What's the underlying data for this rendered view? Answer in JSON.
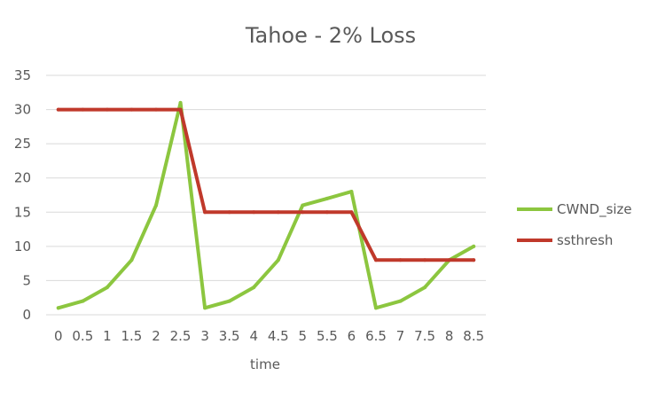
{
  "chart_data": {
    "type": "line",
    "title": "Tahoe - 2% Loss",
    "xlabel": "time",
    "ylabel": "",
    "categories": [
      "0",
      "0.5",
      "1",
      "1.5",
      "2",
      "2.5",
      "3",
      "3.5",
      "4",
      "4.5",
      "5",
      "5.5",
      "6",
      "6.5",
      "7",
      "7.5",
      "8",
      "8.5"
    ],
    "ylim": [
      0,
      35
    ],
    "yticks": [
      "0",
      "5",
      "10",
      "15",
      "20",
      "25",
      "30",
      "35"
    ],
    "grid": true,
    "legend_position": "right",
    "series": [
      {
        "name": "CWND_size",
        "color": "#8cc63f",
        "values": [
          1,
          2,
          4,
          8,
          16,
          31,
          1,
          2,
          4,
          8,
          16,
          17,
          18,
          1,
          2,
          4,
          8,
          10
        ]
      },
      {
        "name": "ssthresh",
        "color": "#c0392b",
        "values": [
          30,
          30,
          30,
          30,
          30,
          30,
          15,
          15,
          15,
          15,
          15,
          15,
          15,
          8,
          8,
          8,
          8,
          8
        ]
      }
    ]
  }
}
